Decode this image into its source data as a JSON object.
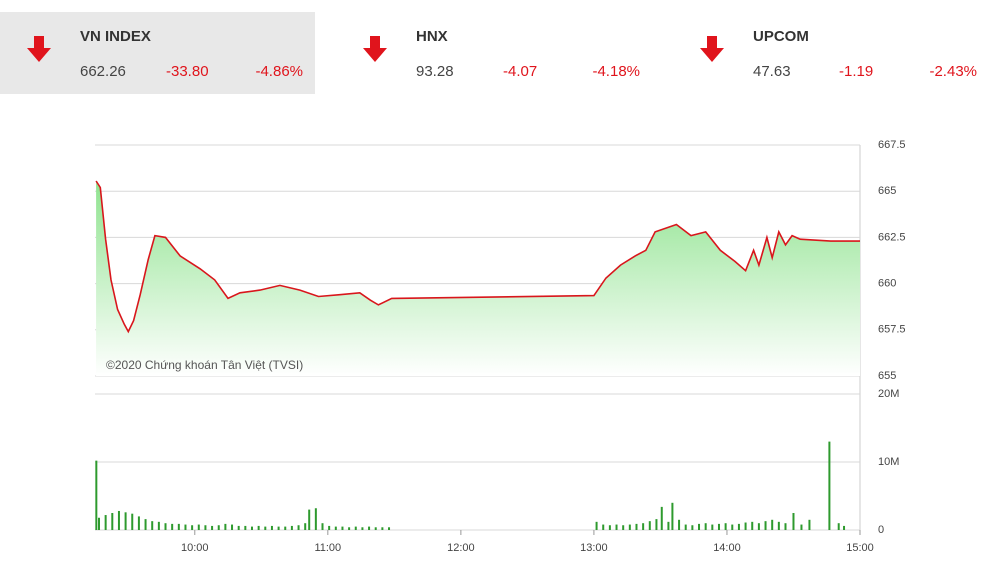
{
  "header": {
    "indices": [
      {
        "name": "VN INDEX",
        "value": "662.26",
        "change": "-33.80",
        "percent": "-4.86%"
      },
      {
        "name": "HNX",
        "value": "93.28",
        "change": "-4.07",
        "percent": "-4.18%"
      },
      {
        "name": "UPCOM",
        "value": "47.63",
        "change": "-1.19",
        "percent": "-2.43%"
      }
    ]
  },
  "chart_data": [
    {
      "type": "line",
      "annotation": "©2020 Chứng khoán Tân Việt (TVSI)",
      "x": [
        9.258,
        9.29,
        9.33,
        9.37,
        9.42,
        9.47,
        9.5,
        9.54,
        9.59,
        9.65,
        9.7,
        9.78,
        9.89,
        10.04,
        10.15,
        10.25,
        10.34,
        10.49,
        10.64,
        10.79,
        10.93,
        11.09,
        11.24,
        11.32,
        11.38,
        11.48,
        13.0,
        13.09,
        13.2,
        13.31,
        13.39,
        13.46,
        13.62,
        13.73,
        13.84,
        13.95,
        14.06,
        14.14,
        14.2,
        14.24,
        14.3,
        14.34,
        14.39,
        14.44,
        14.49,
        14.55,
        14.78,
        15.0
      ],
      "series": [
        {
          "color": "#d9161c",
          "values": [
            665.55,
            665.2,
            662.4,
            660.2,
            658.6,
            657.8,
            657.4,
            658.0,
            659.4,
            661.3,
            662.6,
            662.5,
            661.5,
            660.8,
            660.2,
            659.2,
            659.5,
            659.65,
            659.9,
            659.65,
            659.3,
            659.4,
            659.5,
            659.1,
            658.85,
            659.2,
            659.35,
            660.3,
            661.0,
            661.5,
            661.8,
            662.8,
            663.2,
            662.6,
            662.8,
            661.8,
            661.2,
            660.7,
            661.8,
            661.0,
            662.5,
            661.4,
            662.8,
            662.1,
            662.6,
            662.4,
            662.3,
            662.3
          ]
        }
      ],
      "xlim": [
        9.25,
        15.0
      ],
      "ylim": [
        655,
        667.5
      ],
      "yticks": [
        655,
        657.5,
        660,
        662.5,
        665,
        667.5
      ],
      "grid": true
    },
    {
      "type": "bar",
      "x": [
        9.26,
        9.28,
        9.33,
        9.38,
        9.43,
        9.48,
        9.53,
        9.58,
        9.63,
        9.68,
        9.73,
        9.78,
        9.83,
        9.88,
        9.93,
        9.98,
        10.03,
        10.08,
        10.13,
        10.18,
        10.23,
        10.28,
        10.33,
        10.38,
        10.43,
        10.48,
        10.53,
        10.58,
        10.63,
        10.68,
        10.73,
        10.78,
        10.83,
        10.86,
        10.91,
        10.96,
        11.01,
        11.06,
        11.11,
        11.16,
        11.21,
        11.26,
        11.31,
        11.36,
        11.41,
        11.46,
        13.02,
        13.07,
        13.12,
        13.17,
        13.22,
        13.27,
        13.32,
        13.37,
        13.42,
        13.47,
        13.51,
        13.56,
        13.59,
        13.64,
        13.69,
        13.74,
        13.79,
        13.84,
        13.89,
        13.94,
        13.99,
        14.04,
        14.09,
        14.14,
        14.19,
        14.24,
        14.29,
        14.34,
        14.39,
        14.44,
        14.5,
        14.56,
        14.62,
        14.77,
        14.84,
        14.88
      ],
      "series": [
        {
          "color": "#2e9a2e",
          "values": [
            10.2,
            1.8,
            2.2,
            2.5,
            2.8,
            2.6,
            2.4,
            2.0,
            1.6,
            1.3,
            1.2,
            1.0,
            0.9,
            0.9,
            0.8,
            0.7,
            0.8,
            0.7,
            0.6,
            0.7,
            0.9,
            0.8,
            0.6,
            0.6,
            0.5,
            0.6,
            0.5,
            0.6,
            0.5,
            0.5,
            0.6,
            0.7,
            1.0,
            3.0,
            3.2,
            1.0,
            0.6,
            0.5,
            0.5,
            0.4,
            0.5,
            0.4,
            0.5,
            0.4,
            0.4,
            0.4,
            1.2,
            0.8,
            0.7,
            0.8,
            0.7,
            0.8,
            0.9,
            1.0,
            1.3,
            1.6,
            3.4,
            1.2,
            4.0,
            1.5,
            0.8,
            0.7,
            0.9,
            1.0,
            0.8,
            0.9,
            1.0,
            0.8,
            0.9,
            1.1,
            1.2,
            1.0,
            1.3,
            1.5,
            1.2,
            1.0,
            2.5,
            0.8,
            1.5,
            13.0,
            1.0,
            0.6
          ]
        }
      ],
      "xlim": [
        9.25,
        15.0
      ],
      "ylim": [
        0,
        20
      ],
      "yticks": [
        0,
        {
          "value": 10,
          "label": "10M"
        },
        {
          "value": 20,
          "label": "20M"
        }
      ],
      "xticks": [
        {
          "value": 10,
          "label": "10:00"
        },
        {
          "value": 11,
          "label": "11:00"
        },
        {
          "value": 12,
          "label": "12:00"
        },
        {
          "value": 13,
          "label": "13:00"
        },
        {
          "value": 14,
          "label": "14:00"
        },
        {
          "value": 15,
          "label": "15:00"
        }
      ],
      "grid": true
    }
  ]
}
